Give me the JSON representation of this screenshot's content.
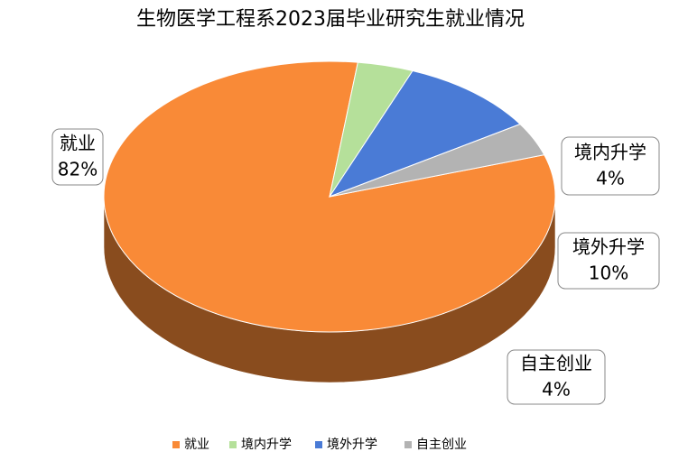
{
  "chart_data": {
    "type": "pie",
    "title": "生物医学工程系2023届毕业研究生就业情况",
    "categories": [
      "就业",
      "境内升学",
      "境外升学",
      "自主创业"
    ],
    "values": [
      82,
      4,
      10,
      4
    ],
    "value_labels": [
      "82%",
      "4%",
      "10%",
      "4%"
    ],
    "colors": [
      "#f98a37",
      "#b5e09a",
      "#4a7bd6",
      "#b3b3b3"
    ],
    "legend": "bottom"
  }
}
